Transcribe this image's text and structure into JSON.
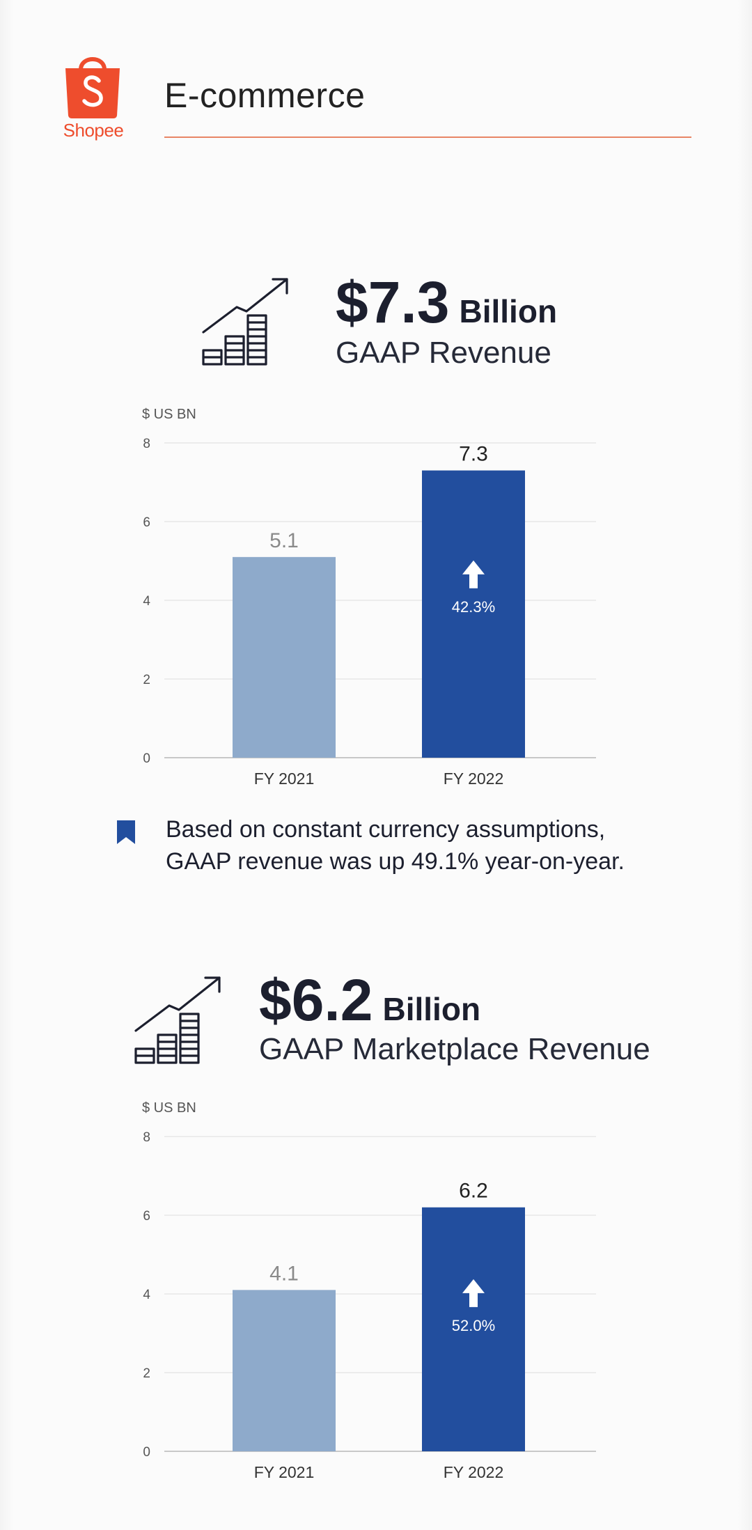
{
  "header": {
    "logo_text": "Shopee",
    "section_title": "E-commerce"
  },
  "colors": {
    "brand": "#ee4d2d",
    "bar_prior": "#8eaacb",
    "bar_current": "#224e9e",
    "grid": "#e4e4e4",
    "axis": "#c8c8c8"
  },
  "block1": {
    "amount": "$7.3",
    "unit": "Billion",
    "subtitle": "GAAP Revenue",
    "icon": "growth-chart-icon"
  },
  "note": {
    "icon": "bookmark-icon",
    "line1": "Based on constant currency assumptions,",
    "line2": "GAAP revenue was up 49.1% year-on-year."
  },
  "block2": {
    "amount": "$6.2",
    "unit": "Billion",
    "subtitle": "GAAP Marketplace Revenue",
    "icon": "growth-chart-icon"
  },
  "chart_data": [
    {
      "type": "bar",
      "unit_label": "$ US BN",
      "categories": [
        "FY 2021",
        "FY 2022"
      ],
      "values": [
        5.1,
        7.3
      ],
      "value_labels": [
        "5.1",
        "7.3"
      ],
      "ylim": [
        0,
        8
      ],
      "yticks": [
        "0",
        "2",
        "4",
        "6",
        "8"
      ],
      "growth_label": "42.3%",
      "grid": true
    },
    {
      "type": "bar",
      "unit_label": "$ US BN",
      "categories": [
        "FY 2021",
        "FY 2022"
      ],
      "values": [
        4.1,
        6.2
      ],
      "value_labels": [
        "4.1",
        "6.2"
      ],
      "ylim": [
        0,
        8
      ],
      "yticks": [
        "0",
        "2",
        "4",
        "6",
        "8"
      ],
      "growth_label": "52.0%",
      "grid": true
    }
  ]
}
